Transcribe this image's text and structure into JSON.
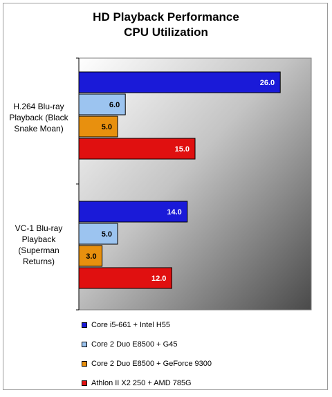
{
  "chart_data": {
    "type": "bar",
    "orientation": "horizontal",
    "title": [
      "HD Playback Performance",
      "CPU Utilization"
    ],
    "categories": [
      [
        "H.264 Blu-ray",
        "Playback (Black",
        "Snake Moan)"
      ],
      [
        "VC-1 Blu-ray",
        "Playback",
        "(Superman",
        "Returns)"
      ]
    ],
    "series": [
      {
        "name": "Core i5-661 + Intel H55",
        "color": "#1a1ad8",
        "values": [
          26.0,
          14.0
        ]
      },
      {
        "name": "Core 2 Duo E8500 + G45",
        "color": "#9cc4f0",
        "values": [
          6.0,
          5.0
        ]
      },
      {
        "name": "Core 2 Duo E8500 + GeForce 9300",
        "color": "#e8900e",
        "values": [
          5.0,
          3.0
        ]
      },
      {
        "name": "Athlon II X2 250 + AMD 785G",
        "color": "#e01010",
        "values": [
          15.0,
          12.0
        ]
      }
    ],
    "value_format": "0.0",
    "xlim": [
      0,
      30
    ],
    "grid": false,
    "legend_position": "bottom"
  }
}
